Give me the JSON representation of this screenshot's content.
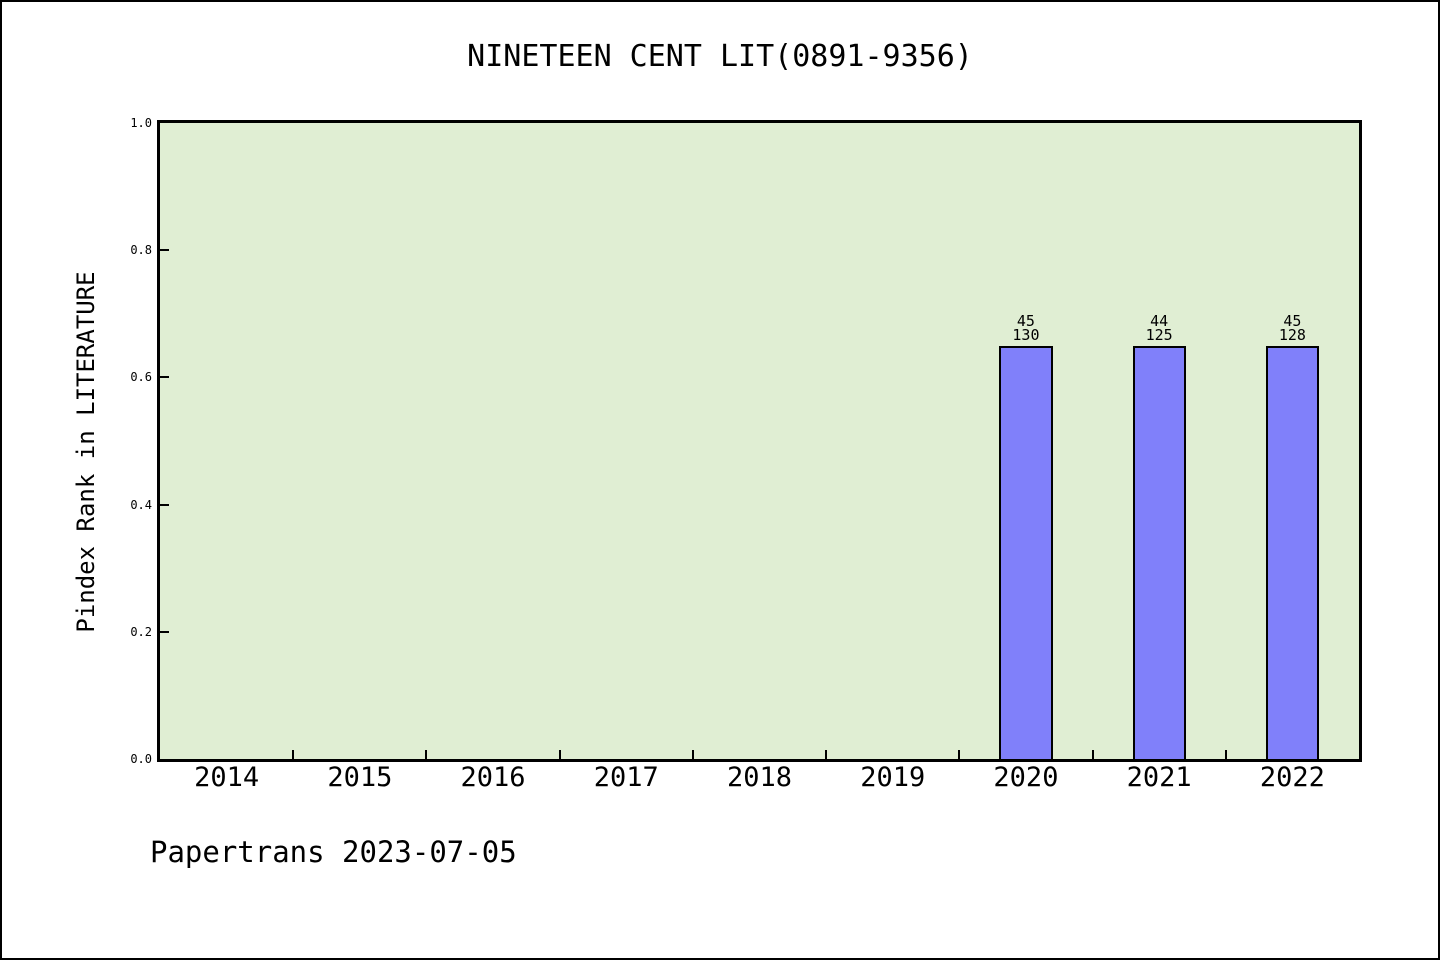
{
  "page": {
    "title": "NINETEEN CENT LIT(0891-9356)",
    "footer": "Papertrans 2023-07-05"
  },
  "chart_data": {
    "type": "bar",
    "title": "NINETEEN CENT LIT(0891-9356)",
    "xlabel": "",
    "ylabel": "Pindex Rank in LITERATURE",
    "categories": [
      "2014",
      "2015",
      "2016",
      "2017",
      "2018",
      "2019",
      "2020",
      "2021",
      "2022"
    ],
    "x_range": [
      2013.5,
      2022.5
    ],
    "ylim": [
      0,
      1
    ],
    "yticks": [
      0.0,
      0.2,
      0.4,
      0.6,
      0.8,
      1.0
    ],
    "grid": false,
    "legend": false,
    "bar_width_units": 0.4,
    "bars": [
      {
        "category": "2020",
        "value": 0.65,
        "label_lines": [
          "45",
          "130"
        ],
        "rank": 45,
        "total": 130
      },
      {
        "category": "2021",
        "value": 0.65,
        "label_lines": [
          "44",
          "125"
        ],
        "rank": 44,
        "total": 125
      },
      {
        "category": "2022",
        "value": 0.65,
        "label_lines": [
          "45",
          "128"
        ],
        "rank": 45,
        "total": 128
      }
    ],
    "colors": {
      "bar_fill": "#8080fa",
      "bar_edge": "#000000",
      "plot_bg": "#e0eed3",
      "axis": "#000000",
      "text": "#000000",
      "page_bg": "#ffffff"
    }
  }
}
